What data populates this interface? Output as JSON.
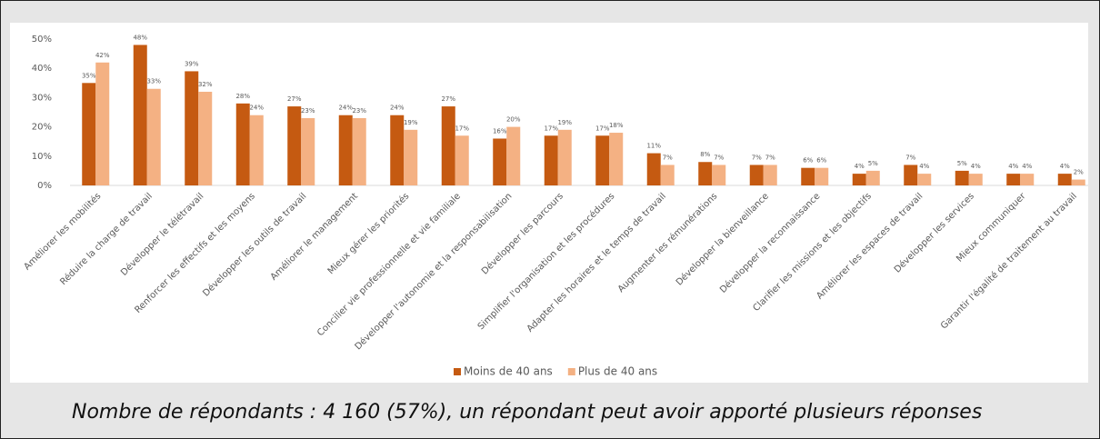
{
  "chart_data": {
    "type": "bar",
    "categories": [
      "Améliorer les mobilités",
      "Réduire la charge de travail",
      "Développer le télétravail",
      "Renforcer les effectifs et les moyens",
      "Développer les outils de travail",
      "Améliorer le management",
      "Mieux gérer les priorités",
      "Concilier vie professionnelle et vie familiale",
      "Développer l'autonomie et la responsabilisation",
      "Développer les parcours",
      "Simplifier l'organisation et les procédures",
      "Adapter les horaires et le temps de travail",
      "Augmenter les rémunérations",
      "Développer la bienveillance",
      "Développer la reconnaissance",
      "Clarifier les missions et les objectifs",
      "Améliorer les espaces de travail",
      "Développer les services",
      "Mieux communiquer",
      "Garantir l'égalité de traitement au travail"
    ],
    "series": [
      {
        "name": "Moins de 40 ans",
        "color": "#c55a11",
        "values": [
          35,
          48,
          39,
          28,
          27,
          24,
          24,
          27,
          16,
          17,
          17,
          11,
          8,
          7,
          6,
          4,
          7,
          5,
          4,
          4
        ],
        "value_labels": [
          "35%",
          "48%",
          "39%",
          "28%",
          "27%",
          "24%",
          "24%",
          "27%",
          "16%",
          "17%",
          "17%",
          "11%",
          "8%",
          "7%",
          "6%",
          "4%",
          "7%",
          "5%",
          "4%",
          "4%"
        ]
      },
      {
        "name": "Plus de 40 ans",
        "color": "#f4b183",
        "values": [
          42,
          33,
          32,
          24,
          23,
          23,
          19,
          17,
          20,
          19,
          18,
          7,
          7,
          7,
          6,
          5,
          4,
          4,
          4,
          2
        ],
        "value_labels": [
          "42%",
          "33%",
          "32%",
          "24%",
          "23%",
          "23%",
          "19%",
          "17%",
          "20%",
          "19%",
          "18%",
          "7%",
          "7%",
          "7%",
          "6%",
          "5%",
          "4%",
          "4%",
          "4%",
          "2%"
        ]
      }
    ],
    "ylim": [
      0,
      50
    ],
    "yticks": [
      {
        "value": 0,
        "label": "0%"
      },
      {
        "value": 10,
        "label": "10%"
      },
      {
        "value": 20,
        "label": "20%"
      },
      {
        "value": 30,
        "label": "30%"
      },
      {
        "value": 40,
        "label": "40%"
      },
      {
        "value": 50,
        "label": "50%"
      }
    ],
    "grid": false,
    "legend": "bottom"
  },
  "caption": "Nombre de répondants : 4 160 (57%), un répondant peut avoir apporté plusieurs réponses"
}
